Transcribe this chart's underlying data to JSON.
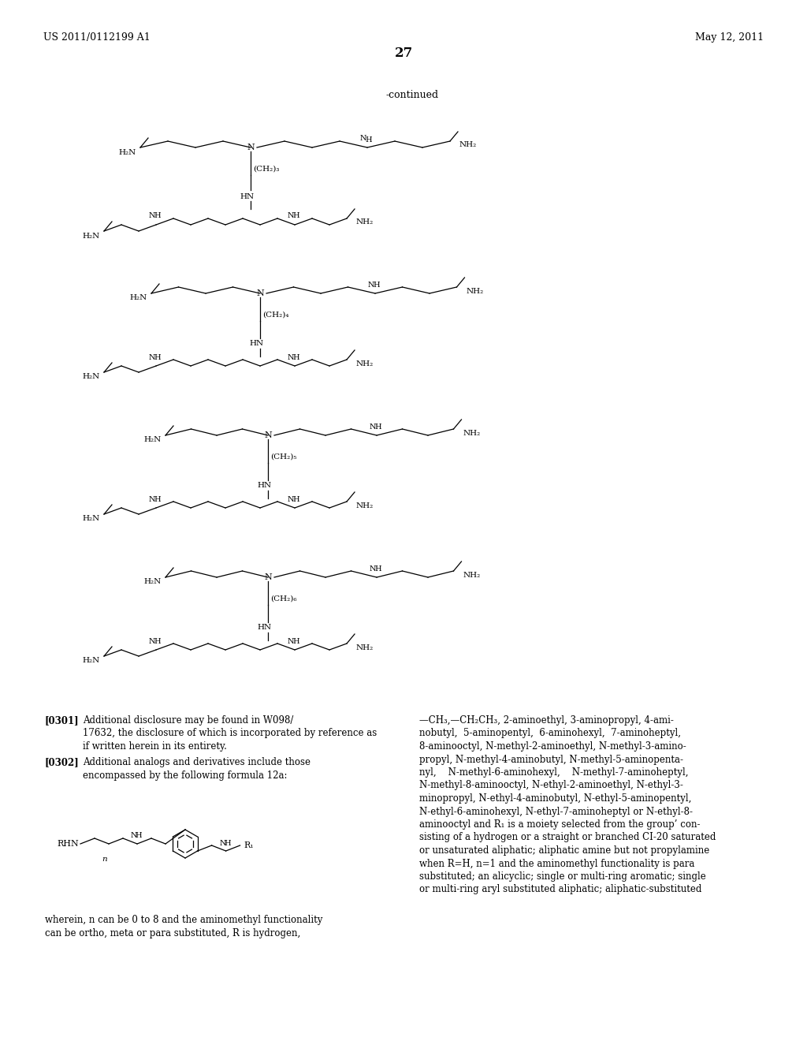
{
  "bg_color": "#ffffff",
  "header_left": "US 2011/0112199 A1",
  "header_right": "May 12, 2011",
  "page_number": "27",
  "continued_label": "-continued",
  "para_0301_text": "Additional disclosure may be found in W098/\n17632, the disclosure of which is incorporated by reference as\nif written herein in its entirety.",
  "para_0302_text": "Additional analogs and derivatives include those\nencompassed by the following formula 12a:",
  "wherein_text": "wherein, n can be 0 to 8 and the aminomethyl functionality\ncan be ortho, meta or para substituted, R is hydrogen,",
  "right_col_text": "—CH₃,—CH₂CH₃, 2-aminoethyl, 3-aminopropyl, 4-ami-\nnobutyl,  5-aminopentyl,  6-aminohexyl,  7-aminoheptyl,\n8-aminooctyl, N-methyl-2-aminoethyl, N-methyl-3-amino-\npropyl, N-methyl-4-aminobutyl, N-methyl-5-aminopenta-\nnyl,    N-methyl-6-aminohexyl,    N-methyl-7-aminoheptyl,\nN-methyl-8-aminooctyl, N-ethyl-2-aminoethyl, N-ethyl-3-\nminopropyl, N-ethyl-4-aminobutyl, N-ethyl-5-aminopentyl,\nN-ethyl-6-aminohexyl, N-ethyl-7-aminoheptyl or N-ethyl-8-\naminooctyl and R₁ is a moiety selected from the group’ con-\nsisting of a hydrogen or a straight or branched CI-20 saturated\nor unsaturated aliphatic; aliphatic amine but not propylamine\nwhen R=H, n=1 and the aminomethyl functionality is para\nsubstituted; an alicyclic; single or multi-ring aromatic; single\nor multi-ring aryl substituted aliphatic; aliphatic-substituted"
}
